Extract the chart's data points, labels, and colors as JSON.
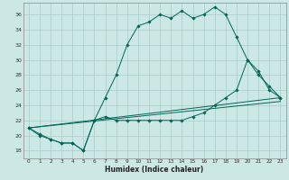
{
  "xlabel": "Humidex (Indice chaleur)",
  "bg_color": "#cce8e4",
  "grid_color": "#aaccca",
  "line_color": "#006655",
  "xlim": [
    -0.5,
    23.5
  ],
  "ylim": [
    17,
    37.5
  ],
  "yticks": [
    18,
    20,
    22,
    24,
    26,
    28,
    30,
    32,
    34,
    36
  ],
  "xticks": [
    0,
    1,
    2,
    3,
    4,
    5,
    6,
    7,
    8,
    9,
    10,
    11,
    12,
    13,
    14,
    15,
    16,
    17,
    18,
    19,
    20,
    21,
    22,
    23
  ],
  "line1_x": [
    0,
    1,
    2,
    3,
    4,
    5,
    6,
    7,
    8,
    9,
    10,
    11,
    12,
    13,
    14,
    15,
    16,
    17,
    18,
    19,
    20,
    21,
    22,
    23
  ],
  "line1_y": [
    21,
    20,
    19.5,
    19,
    19,
    18,
    22,
    25,
    28,
    32,
    34.5,
    35,
    36,
    35.5,
    36.5,
    35.5,
    36,
    37,
    36,
    33,
    30,
    28.5,
    26,
    25
  ],
  "line2_x": [
    0,
    1,
    2,
    3,
    4,
    5,
    6,
    7,
    8,
    9,
    10,
    11,
    12,
    13,
    14,
    15,
    16,
    17,
    18,
    19,
    20,
    21,
    22,
    23
  ],
  "line2_y": [
    21,
    20.2,
    19.5,
    19,
    19,
    18,
    22,
    22.5,
    22,
    22,
    22,
    22,
    22,
    22,
    22,
    22.5,
    23,
    24,
    25,
    26,
    30,
    28,
    26.5,
    25
  ],
  "line3_x": [
    0,
    23
  ],
  "line3_y": [
    21,
    25
  ],
  "line4_x": [
    0,
    23
  ],
  "line4_y": [
    21,
    24.5
  ]
}
